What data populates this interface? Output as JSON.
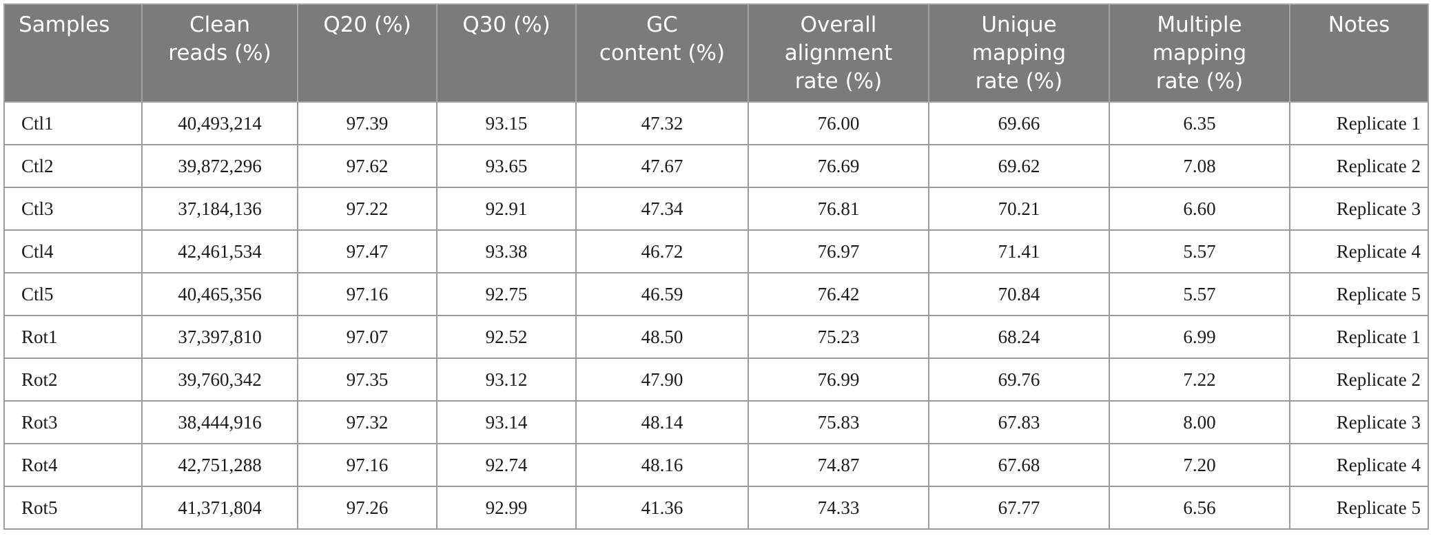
{
  "table": {
    "headers": [
      "Samples",
      "Clean\nreads (%)",
      "Q20 (%)",
      "Q30 (%)",
      "GC\ncontent (%)",
      "Overall\nalignment\nrate (%)",
      "Unique\nmapping\nrate (%)",
      "Multiple\nmapping\nrate (%)",
      "Notes"
    ],
    "rows": [
      [
        "Ctl1",
        "40,493,214",
        "97.39",
        "93.15",
        "47.32",
        "76.00",
        "69.66",
        "6.35",
        "Replicate 1"
      ],
      [
        "Ctl2",
        "39,872,296",
        "97.62",
        "93.65",
        "47.67",
        "76.69",
        "69.62",
        "7.08",
        "Replicate 2"
      ],
      [
        "Ctl3",
        "37,184,136",
        "97.22",
        "92.91",
        "47.34",
        "76.81",
        "70.21",
        "6.60",
        "Replicate 3"
      ],
      [
        "Ctl4",
        "42,461,534",
        "97.47",
        "93.38",
        "46.72",
        "76.97",
        "71.41",
        "5.57",
        "Replicate 4"
      ],
      [
        "Ctl5",
        "40,465,356",
        "97.16",
        "92.75",
        "46.59",
        "76.42",
        "70.84",
        "5.57",
        "Replicate 5"
      ],
      [
        "Rot1",
        "37,397,810",
        "97.07",
        "92.52",
        "48.50",
        "75.23",
        "68.24",
        "6.99",
        "Replicate 1"
      ],
      [
        "Rot2",
        "39,760,342",
        "97.35",
        "93.12",
        "47.90",
        "76.99",
        "69.76",
        "7.22",
        "Replicate 2"
      ],
      [
        "Rot3",
        "38,444,916",
        "97.32",
        "93.14",
        "48.14",
        "75.83",
        "67.83",
        "8.00",
        "Replicate 3"
      ],
      [
        "Rot4",
        "42,751,288",
        "97.16",
        "92.74",
        "48.16",
        "74.87",
        "67.68",
        "7.20",
        "Replicate 4"
      ],
      [
        "Rot5",
        "41,371,804",
        "97.26",
        "92.99",
        "41.36",
        "74.33",
        "67.77",
        "6.56",
        "Replicate 5"
      ]
    ]
  },
  "colors": {
    "header_background": "#7b7b7b",
    "header_text": "#ffffff",
    "border": "#9b9b9b"
  }
}
